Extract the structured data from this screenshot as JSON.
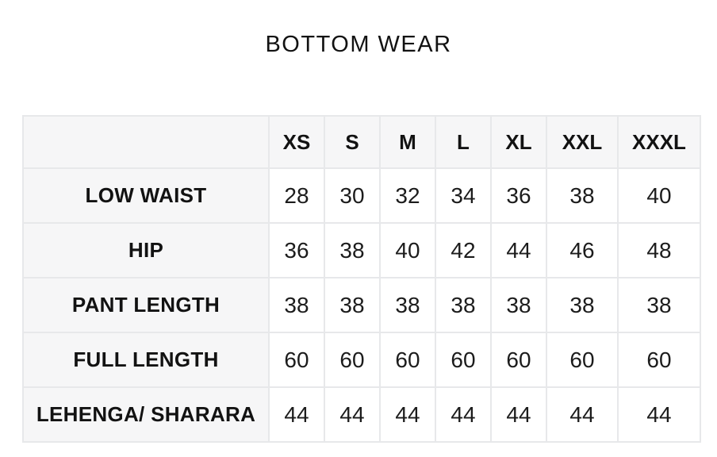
{
  "title": "BOTTOM WEAR",
  "chart_data": {
    "type": "table",
    "title": "BOTTOM WEAR",
    "columns": [
      "XS",
      "S",
      "M",
      "L",
      "XL",
      "XXL",
      "XXXL"
    ],
    "rows": [
      {
        "label": "LOW WAIST",
        "values": [
          28,
          30,
          32,
          34,
          36,
          38,
          40
        ]
      },
      {
        "label": "HIP",
        "values": [
          36,
          38,
          40,
          42,
          44,
          46,
          48
        ]
      },
      {
        "label": "PANT LENGTH",
        "values": [
          38,
          38,
          38,
          38,
          38,
          38,
          38
        ]
      },
      {
        "label": "FULL LENGTH",
        "values": [
          60,
          60,
          60,
          60,
          60,
          60,
          60
        ]
      },
      {
        "label": "LEHENGA/ SHARARA",
        "values": [
          44,
          44,
          44,
          44,
          44,
          44,
          44
        ]
      }
    ],
    "layout": {
      "grid": "on",
      "header_background": "on",
      "label_column_background": "on"
    }
  },
  "colors": {
    "text": "#121212",
    "header_bg": "#f6f6f7",
    "border": "#e7e8ea",
    "cell_bg": "#ffffff"
  }
}
